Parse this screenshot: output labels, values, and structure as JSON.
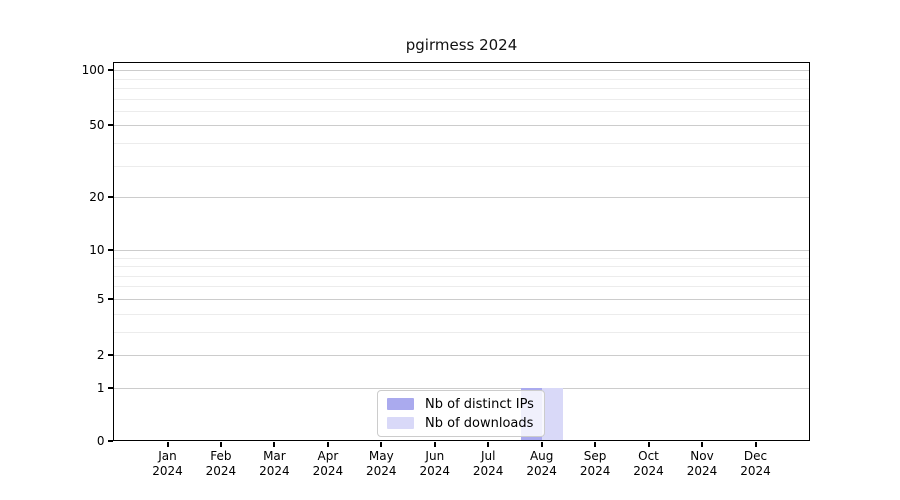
{
  "chart_data": {
    "type": "bar",
    "title": "pgirmess 2024",
    "x": {
      "months": [
        "Jan",
        "Feb",
        "Mar",
        "Apr",
        "May",
        "Jun",
        "Jul",
        "Aug",
        "Sep",
        "Oct",
        "Nov",
        "Dec"
      ],
      "year": "2024"
    },
    "series": [
      {
        "name": "Nb of distinct IPs",
        "color": "#aaaaee",
        "values": [
          0,
          0,
          0,
          0,
          0,
          0,
          0,
          1,
          0,
          0,
          0,
          0
        ]
      },
      {
        "name": "Nb of downloads",
        "color": "#d9d9f8",
        "values": [
          0,
          0,
          0,
          0,
          0,
          0,
          0,
          1,
          0,
          0,
          0,
          0
        ]
      }
    ],
    "yaxis": {
      "scale": "log1p",
      "ticks": [
        0,
        1,
        2,
        5,
        10,
        20,
        50,
        100
      ],
      "minor_gridlines": [
        3,
        4,
        6,
        7,
        8,
        9,
        30,
        40,
        60,
        70,
        80,
        90
      ],
      "range": [
        0,
        110
      ]
    },
    "grid": true,
    "legend": {
      "position": "inside-bottom-center"
    }
  }
}
